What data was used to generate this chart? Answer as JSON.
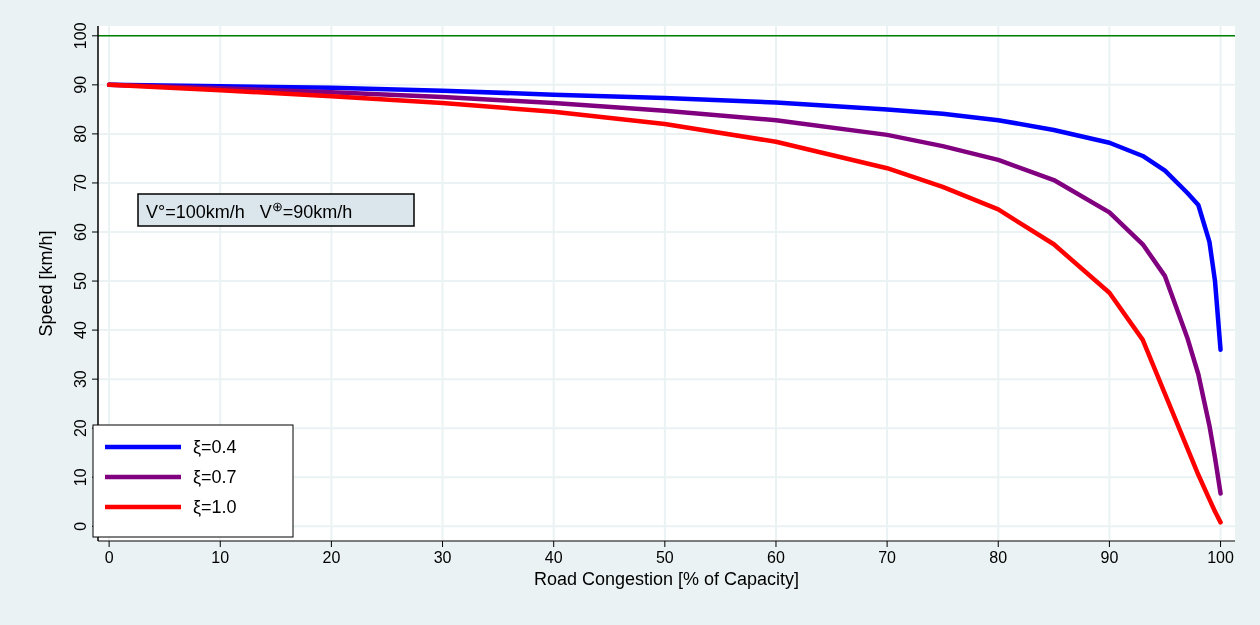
{
  "chart_data": {
    "type": "line",
    "xlabel": "Road Congestion [% of Capacity]",
    "ylabel": "Speed [km/h]",
    "x": [
      0,
      10,
      20,
      30,
      40,
      50,
      60,
      70,
      75,
      80,
      85,
      90,
      93,
      95,
      97,
      98,
      99,
      99.5,
      100
    ],
    "series": [
      {
        "name": "ξ=0.4",
        "color": "#0000ff",
        "values": [
          90,
          89.7,
          89.4,
          88.8,
          88.0,
          87.3,
          86.4,
          85,
          84.1,
          82.8,
          80.8,
          78.2,
          75.5,
          72.5,
          68,
          65.5,
          58,
          50,
          36
        ]
      },
      {
        "name": "ξ=0.7",
        "color": "#800080",
        "values": [
          90,
          89.3,
          88.5,
          87.5,
          86.3,
          84.7,
          82.8,
          79.8,
          77.5,
          74.7,
          70.6,
          64,
          57.5,
          51,
          38.5,
          31,
          20.5,
          14,
          6.7
        ]
      },
      {
        "name": "ξ=1.0",
        "color": "#ff0000",
        "values": [
          90,
          88.9,
          87.7,
          86.3,
          84.5,
          82,
          78.4,
          73,
          69.2,
          64.6,
          57.5,
          47.6,
          38,
          27,
          16,
          10.5,
          5.5,
          3,
          0.8
        ]
      }
    ],
    "xlim": [
      -1,
      101.3
    ],
    "xticks": [
      0,
      10,
      20,
      30,
      40,
      50,
      60,
      70,
      80,
      90,
      100
    ],
    "ylim": [
      -3,
      102
    ],
    "yticks": [
      0,
      10,
      20,
      30,
      40,
      50,
      60,
      70,
      80,
      90,
      100
    ],
    "ref_lines": [
      {
        "axis": "y",
        "value": 100,
        "color": "#008000"
      }
    ],
    "annotations": [
      "V°=100km/h   V$^{⊕}$=90km/h"
    ],
    "grid": true,
    "legend": "bottom left",
    "marker": "none",
    "line_style": "solid"
  }
}
